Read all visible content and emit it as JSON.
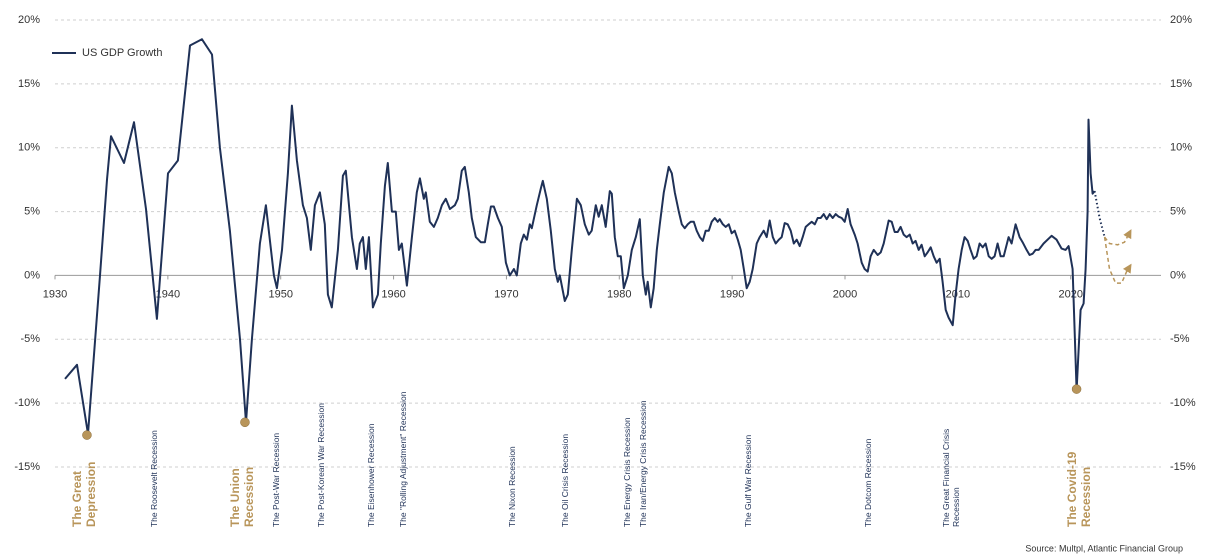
{
  "chart_data": {
    "type": "line",
    "legend": "upper left",
    "xlim": [
      1930,
      2028
    ],
    "xticks": [
      1930,
      1940,
      1950,
      1960,
      1970,
      1980,
      1990,
      2000,
      2010,
      2020
    ],
    "ylim": [
      -15,
      20
    ],
    "yticks": [
      {
        "value": 20,
        "label": "20%"
      },
      {
        "value": 15,
        "label": "15%"
      },
      {
        "value": 10,
        "label": "10%"
      },
      {
        "value": 5,
        "label": "5%"
      },
      {
        "value": 0,
        "label": "0%"
      },
      {
        "value": -5,
        "label": "-5%"
      },
      {
        "value": -10,
        "label": "-10%"
      },
      {
        "value": -15,
        "label": "-15%"
      }
    ],
    "y2lim": [
      -15,
      20
    ],
    "y2ticks": [
      {
        "value": 20,
        "label": "20%"
      },
      {
        "value": 15,
        "label": "15%"
      },
      {
        "value": 10,
        "label": "10%"
      },
      {
        "value": 5,
        "label": "5%"
      },
      {
        "value": 0,
        "label": "0%"
      },
      {
        "value": -5,
        "label": "-5%"
      },
      {
        "value": -10,
        "label": "-10%"
      },
      {
        "value": -15,
        "label": "-15%"
      }
    ],
    "grid": true,
    "series": [
      {
        "name": "US GDP Growth",
        "color": "#1f3157",
        "x": [
          1930.89,
          1931.95,
          1932.92,
          1933.99,
          1934.61,
          1934.96,
          1936.11,
          1937.0,
          1938.06,
          1939.03,
          1940.01,
          1940.89,
          1941.96,
          1943.02,
          1943.91,
          1944.61,
          1945.5,
          1946.39,
          1946.92,
          1947.45,
          1948.16,
          1948.69,
          1949.4,
          1949.66,
          1950.11,
          1950.64,
          1950.99,
          1951.43,
          1951.97,
          1952.32,
          1952.67,
          1953.03,
          1953.47,
          1953.91,
          1954.18,
          1954.53,
          1955.07,
          1955.51,
          1955.77,
          1956.31,
          1956.57,
          1956.75,
          1957.01,
          1957.28,
          1957.54,
          1957.81,
          1958.17,
          1958.61,
          1958.87,
          1959.23,
          1959.49,
          1959.85,
          1960.2,
          1960.47,
          1960.73,
          1961.18,
          1961.62,
          1962.06,
          1962.33,
          1962.68,
          1962.86,
          1963.21,
          1963.57,
          1963.92,
          1964.28,
          1964.63,
          1964.99,
          1965.43,
          1965.69,
          1966.05,
          1966.31,
          1966.67,
          1966.93,
          1967.29,
          1967.73,
          1968.09,
          1968.35,
          1968.62,
          1968.88,
          1969.24,
          1969.59,
          1969.95,
          1970.3,
          1970.66,
          1970.92,
          1971.27,
          1971.54,
          1971.81,
          1972.07,
          1972.25,
          1972.69,
          1973.05,
          1973.22,
          1973.58,
          1973.93,
          1974.29,
          1974.55,
          1974.73,
          1975.17,
          1975.44,
          1975.79,
          1976.24,
          1976.59,
          1976.94,
          1977.3,
          1977.56,
          1977.92,
          1978.18,
          1978.45,
          1978.8,
          1979.16,
          1979.34,
          1979.6,
          1979.87,
          1980.13,
          1980.4,
          1980.75,
          1981.11,
          1981.46,
          1981.82,
          1982.08,
          1982.35,
          1982.52,
          1982.79,
          1983.05,
          1983.32,
          1983.59,
          1983.94,
          1984.38,
          1984.65,
          1984.92,
          1985.27,
          1985.54,
          1985.8,
          1986.07,
          1986.33,
          1986.6,
          1986.86,
          1987.13,
          1987.4,
          1987.66,
          1987.93,
          1988.19,
          1988.46,
          1988.72,
          1988.9,
          1989.17,
          1989.43,
          1989.7,
          1989.96,
          1990.23,
          1990.5,
          1990.76,
          1991.03,
          1991.29,
          1991.56,
          1991.82,
          1992.18,
          1992.44,
          1992.8,
          1993.06,
          1993.33,
          1993.6,
          1993.86,
          1994.13,
          1994.39,
          1994.66,
          1994.92,
          1995.19,
          1995.46,
          1995.72,
          1995.99,
          1996.25,
          1996.52,
          1996.78,
          1997.05,
          1997.32,
          1997.58,
          1997.85,
          1998.11,
          1998.38,
          1998.64,
          1998.91,
          1999.18,
          1999.44,
          1999.71,
          1999.97,
          2000.24,
          2000.5,
          2000.86,
          2001.12,
          2001.48,
          2001.74,
          2002.01,
          2002.27,
          2002.54,
          2002.9,
          2003.16,
          2003.43,
          2003.87,
          2004.14,
          2004.4,
          2004.67,
          2004.93,
          2005.2,
          2005.46,
          2005.73,
          2006.0,
          2006.26,
          2006.53,
          2006.79,
          2007.06,
          2007.32,
          2007.59,
          2007.86,
          2008.12,
          2008.39,
          2008.65,
          2008.92,
          2009.18,
          2009.54,
          2009.8,
          2010.07,
          2010.34,
          2010.6,
          2010.87,
          2011.13,
          2011.4,
          2011.66,
          2011.93,
          2012.2,
          2012.46,
          2012.73,
          2012.99,
          2013.26,
          2013.52,
          2013.79,
          2014.06,
          2014.5,
          2014.76,
          2015.12,
          2015.47,
          2015.74,
          2016.09,
          2016.36,
          2016.63,
          2016.89,
          2017.16,
          2017.6,
          2018.31,
          2018.75,
          2019.19,
          2019.55,
          2019.81,
          2020.17,
          2020.52,
          2020.88,
          2021.14,
          2021.32,
          2021.5,
          2021.58,
          2021.76,
          2021.94,
          2022.12
        ],
        "values": [
          -8.1,
          -7,
          -12.4,
          0,
          7.5,
          10.9,
          8.8,
          12,
          5.2,
          -3.4,
          8,
          9,
          18,
          18.5,
          17.3,
          10,
          3.5,
          -5,
          -11.5,
          -5,
          2.5,
          5.5,
          0,
          -1,
          2,
          8,
          13.3,
          9,
          5.5,
          4.5,
          2,
          5.5,
          6.5,
          4,
          -1.5,
          -2.5,
          2,
          7.8,
          8.2,
          3,
          1.5,
          0.5,
          2.5,
          3,
          0.5,
          3,
          -2.5,
          -1.5,
          2.5,
          7,
          8.8,
          5,
          5,
          2,
          2.5,
          -0.8,
          3,
          6.5,
          7.6,
          6,
          6.5,
          4.2,
          3.8,
          4.5,
          5.5,
          6,
          5.2,
          5.5,
          6,
          8.2,
          8.5,
          6.5,
          4.5,
          3,
          2.6,
          2.6,
          4,
          5.4,
          5.4,
          4.5,
          3.8,
          1,
          0,
          0.5,
          0,
          2.5,
          3.2,
          2.8,
          4,
          3.7,
          5.5,
          6.8,
          7.4,
          6,
          3.5,
          0.5,
          -0.5,
          0,
          -2,
          -1.5,
          2,
          6,
          5.5,
          4,
          3.2,
          3.5,
          5.5,
          4.6,
          5.5,
          3.8,
          6.6,
          6.4,
          3,
          1.5,
          1.5,
          -1,
          0,
          2,
          3,
          4.4,
          0,
          -1.5,
          -0.5,
          -2.5,
          -1,
          2,
          4,
          6.5,
          8.5,
          8,
          6.5,
          5,
          4,
          3.7,
          4,
          4.2,
          4.2,
          3.5,
          3,
          2.7,
          3.5,
          3.5,
          4.2,
          4.5,
          4.2,
          4.4,
          4,
          3.8,
          4,
          3.3,
          3.5,
          2.8,
          2,
          0.5,
          -1,
          -0.5,
          0.5,
          2.5,
          3,
          3.5,
          3,
          4.3,
          3,
          2.5,
          2.8,
          3,
          4.1,
          4,
          3.5,
          2.5,
          2.8,
          2.3,
          3,
          3.8,
          4,
          4.2,
          4,
          4.5,
          4.5,
          4.8,
          4.4,
          4.8,
          4.5,
          4.8,
          4.6,
          4.5,
          4.2,
          5.2,
          4,
          3.2,
          2.5,
          1,
          0.5,
          0.3,
          1.5,
          2,
          1.6,
          1.8,
          2.5,
          4.3,
          4.2,
          3.4,
          3.4,
          3.8,
          3.2,
          3,
          3.2,
          2.5,
          2.7,
          2,
          2.4,
          1.5,
          1.8,
          2.2,
          1.5,
          1,
          1.3,
          -0.5,
          -2.7,
          -3.3,
          -3.9,
          -1.5,
          0.5,
          2,
          3,
          2.7,
          2,
          1.3,
          1.5,
          2.5,
          2.2,
          2.5,
          1.5,
          1.3,
          1.5,
          2.5,
          1.5,
          1.5,
          3,
          2.5,
          4,
          3,
          2.6,
          2,
          1.6,
          1.7,
          2,
          2,
          2.5,
          3.1,
          2.8,
          2.1,
          2,
          2.3,
          0.5,
          -9,
          -2.7,
          -2.2,
          0.5,
          5,
          12.2,
          8,
          6.4,
          6.6
        ]
      }
    ],
    "forecast": [
      {
        "color": "#1f3157",
        "style": "dotted",
        "x": [
          2022.12,
          2022.56,
          2023.0
        ],
        "values": [
          6.6,
          4.5,
          3
        ]
      },
      {
        "color": "#b8955a",
        "style": "dashed",
        "x": [
          2023.0,
          2023.44,
          2024.15,
          2024.77,
          2025.31
        ],
        "values": [
          3,
          2.5,
          2.4,
          2.6,
          3.5
        ]
      },
      {
        "color": "#b8955a",
        "style": "dashed",
        "x": [
          2023.0,
          2023.44,
          2023.98,
          2024.51,
          2024.95,
          2025.31
        ],
        "values": [
          3,
          0.5,
          -0.6,
          -0.6,
          0.3,
          0.8
        ]
      }
    ],
    "annotations": [
      {
        "lines": [
          "The Great",
          "Depression"
        ],
        "x": 1932.66,
        "color": "#b8955a",
        "emphasis": true,
        "marker_x": 1932.83,
        "marker_value": -12.5
      },
      {
        "lines": [
          "The Roosevelt Recession"
        ],
        "x": 1938.86,
        "color": "#1f3157"
      },
      {
        "lines": [
          "The Union",
          "Recession"
        ],
        "x": 1946.65,
        "color": "#b8955a",
        "emphasis": true,
        "marker_x": 1946.83,
        "marker_value": -11.5
      },
      {
        "lines": [
          "The Post-War Recession"
        ],
        "x": 1949.66,
        "color": "#1f3157"
      },
      {
        "lines": [
          "The Post-Korean War Recession"
        ],
        "x": 1953.65,
        "color": "#1f3157"
      },
      {
        "lines": [
          "The Eisenhower Recession"
        ],
        "x": 1958.08,
        "color": "#1f3157"
      },
      {
        "lines": [
          "The \"Rolling Adjustment\" Recession"
        ],
        "x": 1960.91,
        "color": "#1f3157"
      },
      {
        "lines": [
          "The Nixon Recession"
        ],
        "x": 1970.57,
        "color": "#1f3157"
      },
      {
        "lines": [
          "The Oil Crisis Recession"
        ],
        "x": 1975.26,
        "color": "#1f3157"
      },
      {
        "lines": [
          "The Energy Crisis Recession"
        ],
        "x": 1980.75,
        "color": "#1f3157"
      },
      {
        "lines": [
          "The Iran/Energy Crisis Recession"
        ],
        "x": 1982.17,
        "color": "#1f3157"
      },
      {
        "lines": [
          "The Gulf War Recession"
        ],
        "x": 1991.47,
        "color": "#1f3157"
      },
      {
        "lines": [
          "The Dotcom Recession"
        ],
        "x": 2002.1,
        "color": "#1f3157"
      },
      {
        "lines": [
          "The Great Financial Crisis",
          "Recession"
        ],
        "x": 2009.45,
        "color": "#1f3157"
      },
      {
        "lines": [
          "The Covid-19",
          "Recession"
        ],
        "x": 2020.79,
        "color": "#b8955a",
        "emphasis": true,
        "marker_x": 2020.52,
        "marker_value": -8.9
      }
    ],
    "source": "Source: Multpl, Atlantic Financial Group"
  }
}
